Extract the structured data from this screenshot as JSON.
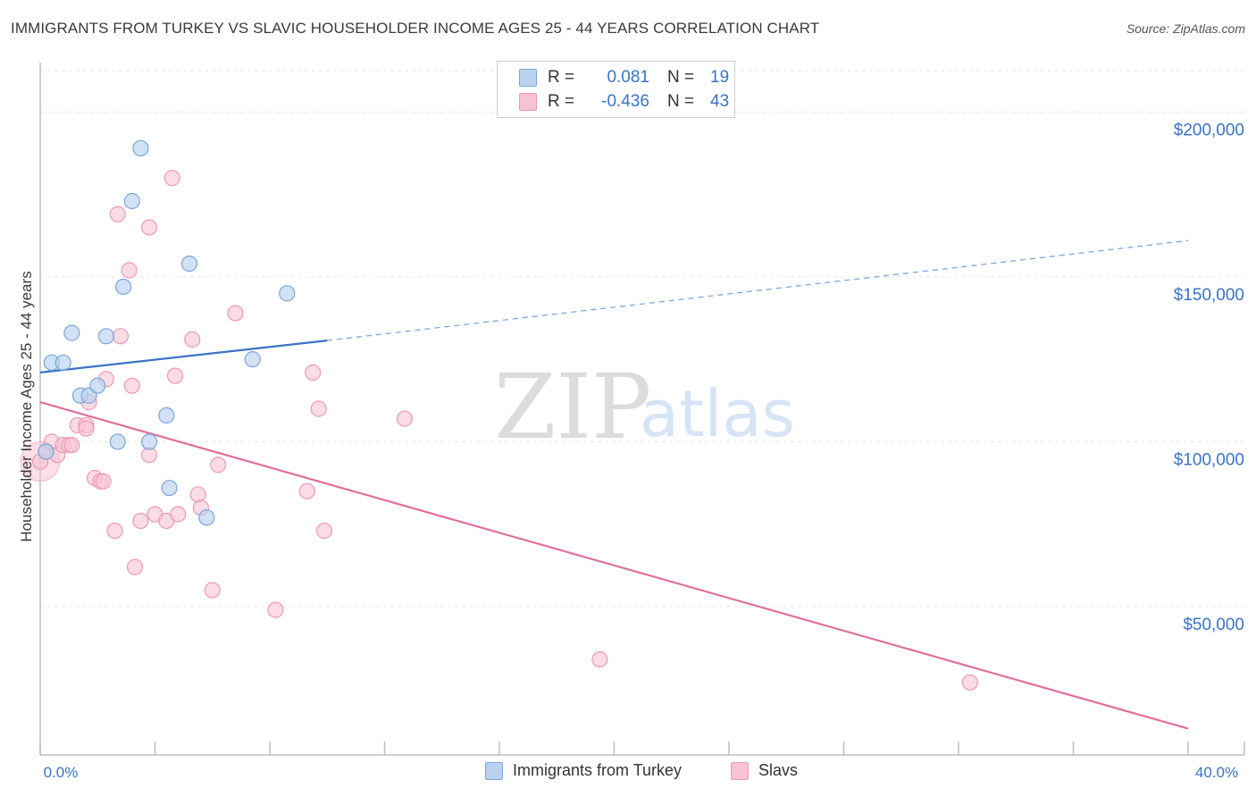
{
  "header": {
    "title": "IMMIGRANTS FROM TURKEY VS SLAVIC HOUSEHOLDER INCOME AGES 25 - 44 YEARS CORRELATION CHART",
    "source": "Source: ZipAtlas.com"
  },
  "legend": {
    "rows": [
      {
        "r_label": "R =",
        "r_value": "0.081",
        "n_label": "N =",
        "n_value": "19"
      },
      {
        "r_label": "R =",
        "r_value": "-0.436",
        "n_label": "N =",
        "n_value": "43"
      }
    ]
  },
  "bottom_legend": {
    "series_a": "Immigrants from Turkey",
    "series_b": "Slavs"
  },
  "watermark": {
    "zip": "ZIP",
    "atlas": "atlas"
  },
  "colors": {
    "blue": "#3a73c4",
    "blue_fill": "#b8d2f0",
    "blue_stroke": "#7ba6dc",
    "pink": "#e0709a",
    "pink_fill": "#f8c3d4",
    "pink_stroke": "#eb9ab5"
  },
  "chart_data": {
    "type": "scatter",
    "title": "IMMIGRANTS FROM TURKEY VS SLAVIC HOUSEHOLDER INCOME AGES 25 - 44 YEARS CORRELATION CHART",
    "xlabel": "",
    "ylabel": "Householder Income Ages 25 - 44 years",
    "xlim": [
      0,
      40
    ],
    "ylim": [
      5000,
      215000
    ],
    "x_tick_labels": [
      "0.0%",
      "40.0%"
    ],
    "y_ticks": [
      {
        "value": 200000,
        "label": "$200,000"
      },
      {
        "value": 150000,
        "label": "$150,000"
      },
      {
        "value": 100000,
        "label": "$100,000"
      },
      {
        "value": 50000,
        "label": "$50,000"
      }
    ],
    "series": [
      {
        "name": "Immigrants from Turkey",
        "color": "#7ba6dc",
        "points": [
          [
            0.2,
            97000
          ],
          [
            0.4,
            124000
          ],
          [
            0.8,
            124000
          ],
          [
            1.1,
            133000
          ],
          [
            1.4,
            114000
          ],
          [
            1.7,
            114000
          ],
          [
            2.0,
            117000
          ],
          [
            2.3,
            132000
          ],
          [
            2.7,
            100000
          ],
          [
            2.9,
            147000
          ],
          [
            3.2,
            173000
          ],
          [
            3.5,
            189000
          ],
          [
            3.8,
            100000
          ],
          [
            4.4,
            108000
          ],
          [
            4.5,
            86000
          ],
          [
            5.2,
            154000
          ],
          [
            5.8,
            77000
          ],
          [
            7.4,
            125000
          ],
          [
            8.6,
            145000
          ]
        ],
        "trend": {
          "x0": 0,
          "y0": 121000,
          "x1": 10.0,
          "y1": 130700,
          "dashed_to_x": 40,
          "dashed_to_y": 161000
        }
      },
      {
        "name": "Slavs",
        "color": "#eb9ab5",
        "points": [
          [
            0.0,
            94000
          ],
          [
            0.2,
            97000
          ],
          [
            0.4,
            100000
          ],
          [
            0.6,
            96000
          ],
          [
            0.8,
            99000
          ],
          [
            1.0,
            99000
          ],
          [
            1.1,
            99000
          ],
          [
            1.3,
            105000
          ],
          [
            1.6,
            105000
          ],
          [
            1.6,
            104000
          ],
          [
            1.7,
            112000
          ],
          [
            1.9,
            89000
          ],
          [
            2.1,
            88000
          ],
          [
            2.2,
            88000
          ],
          [
            2.3,
            119000
          ],
          [
            2.6,
            73000
          ],
          [
            2.7,
            169000
          ],
          [
            2.8,
            132000
          ],
          [
            3.1,
            152000
          ],
          [
            3.2,
            117000
          ],
          [
            3.3,
            62000
          ],
          [
            3.5,
            76000
          ],
          [
            3.8,
            165000
          ],
          [
            3.8,
            96000
          ],
          [
            4.0,
            78000
          ],
          [
            4.4,
            76000
          ],
          [
            4.6,
            180000
          ],
          [
            4.7,
            120000
          ],
          [
            4.8,
            78000
          ],
          [
            5.3,
            131000
          ],
          [
            5.5,
            84000
          ],
          [
            5.6,
            80000
          ],
          [
            6.0,
            55000
          ],
          [
            6.2,
            93000
          ],
          [
            6.8,
            139000
          ],
          [
            8.2,
            49000
          ],
          [
            9.3,
            85000
          ],
          [
            9.5,
            121000
          ],
          [
            9.7,
            110000
          ],
          [
            9.9,
            73000
          ],
          [
            12.7,
            107000
          ],
          [
            19.5,
            34000
          ],
          [
            32.4,
            27000
          ]
        ],
        "trend": {
          "x0": 0,
          "y0": 112000,
          "x1": 40,
          "y1": 13000
        }
      }
    ]
  }
}
